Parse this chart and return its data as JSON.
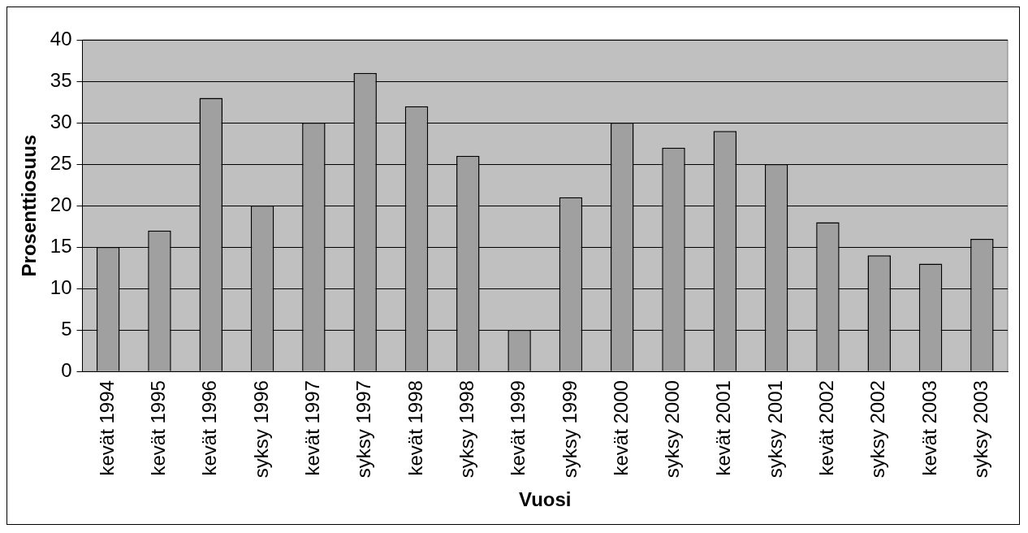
{
  "chart_data": {
    "type": "bar",
    "xlabel": "Vuosi",
    "ylabel": "Prosenttiosuus",
    "categories": [
      "kevät 1994",
      "kevät 1995",
      "kevät 1996",
      "syksy 1996",
      "kevät 1997",
      "syksy 1997",
      "kevät 1998",
      "syksy 1998",
      "kevät 1999",
      "syksy 1999",
      "kevät 2000",
      "syksy 2000",
      "kevät 2001",
      "syksy 2001",
      "kevät 2002",
      "syksy 2002",
      "kevät 2003",
      "syksy 2003"
    ],
    "values": [
      15,
      17,
      33,
      20,
      30,
      36,
      32,
      26,
      5,
      21,
      30,
      27,
      29,
      25,
      18,
      14,
      13,
      16
    ],
    "color": "#a0a0a0",
    "ylim": [
      0,
      40
    ],
    "yticks": [
      0,
      5,
      10,
      15,
      20,
      25,
      30,
      35,
      40
    ],
    "grid": "y",
    "legend": false
  }
}
